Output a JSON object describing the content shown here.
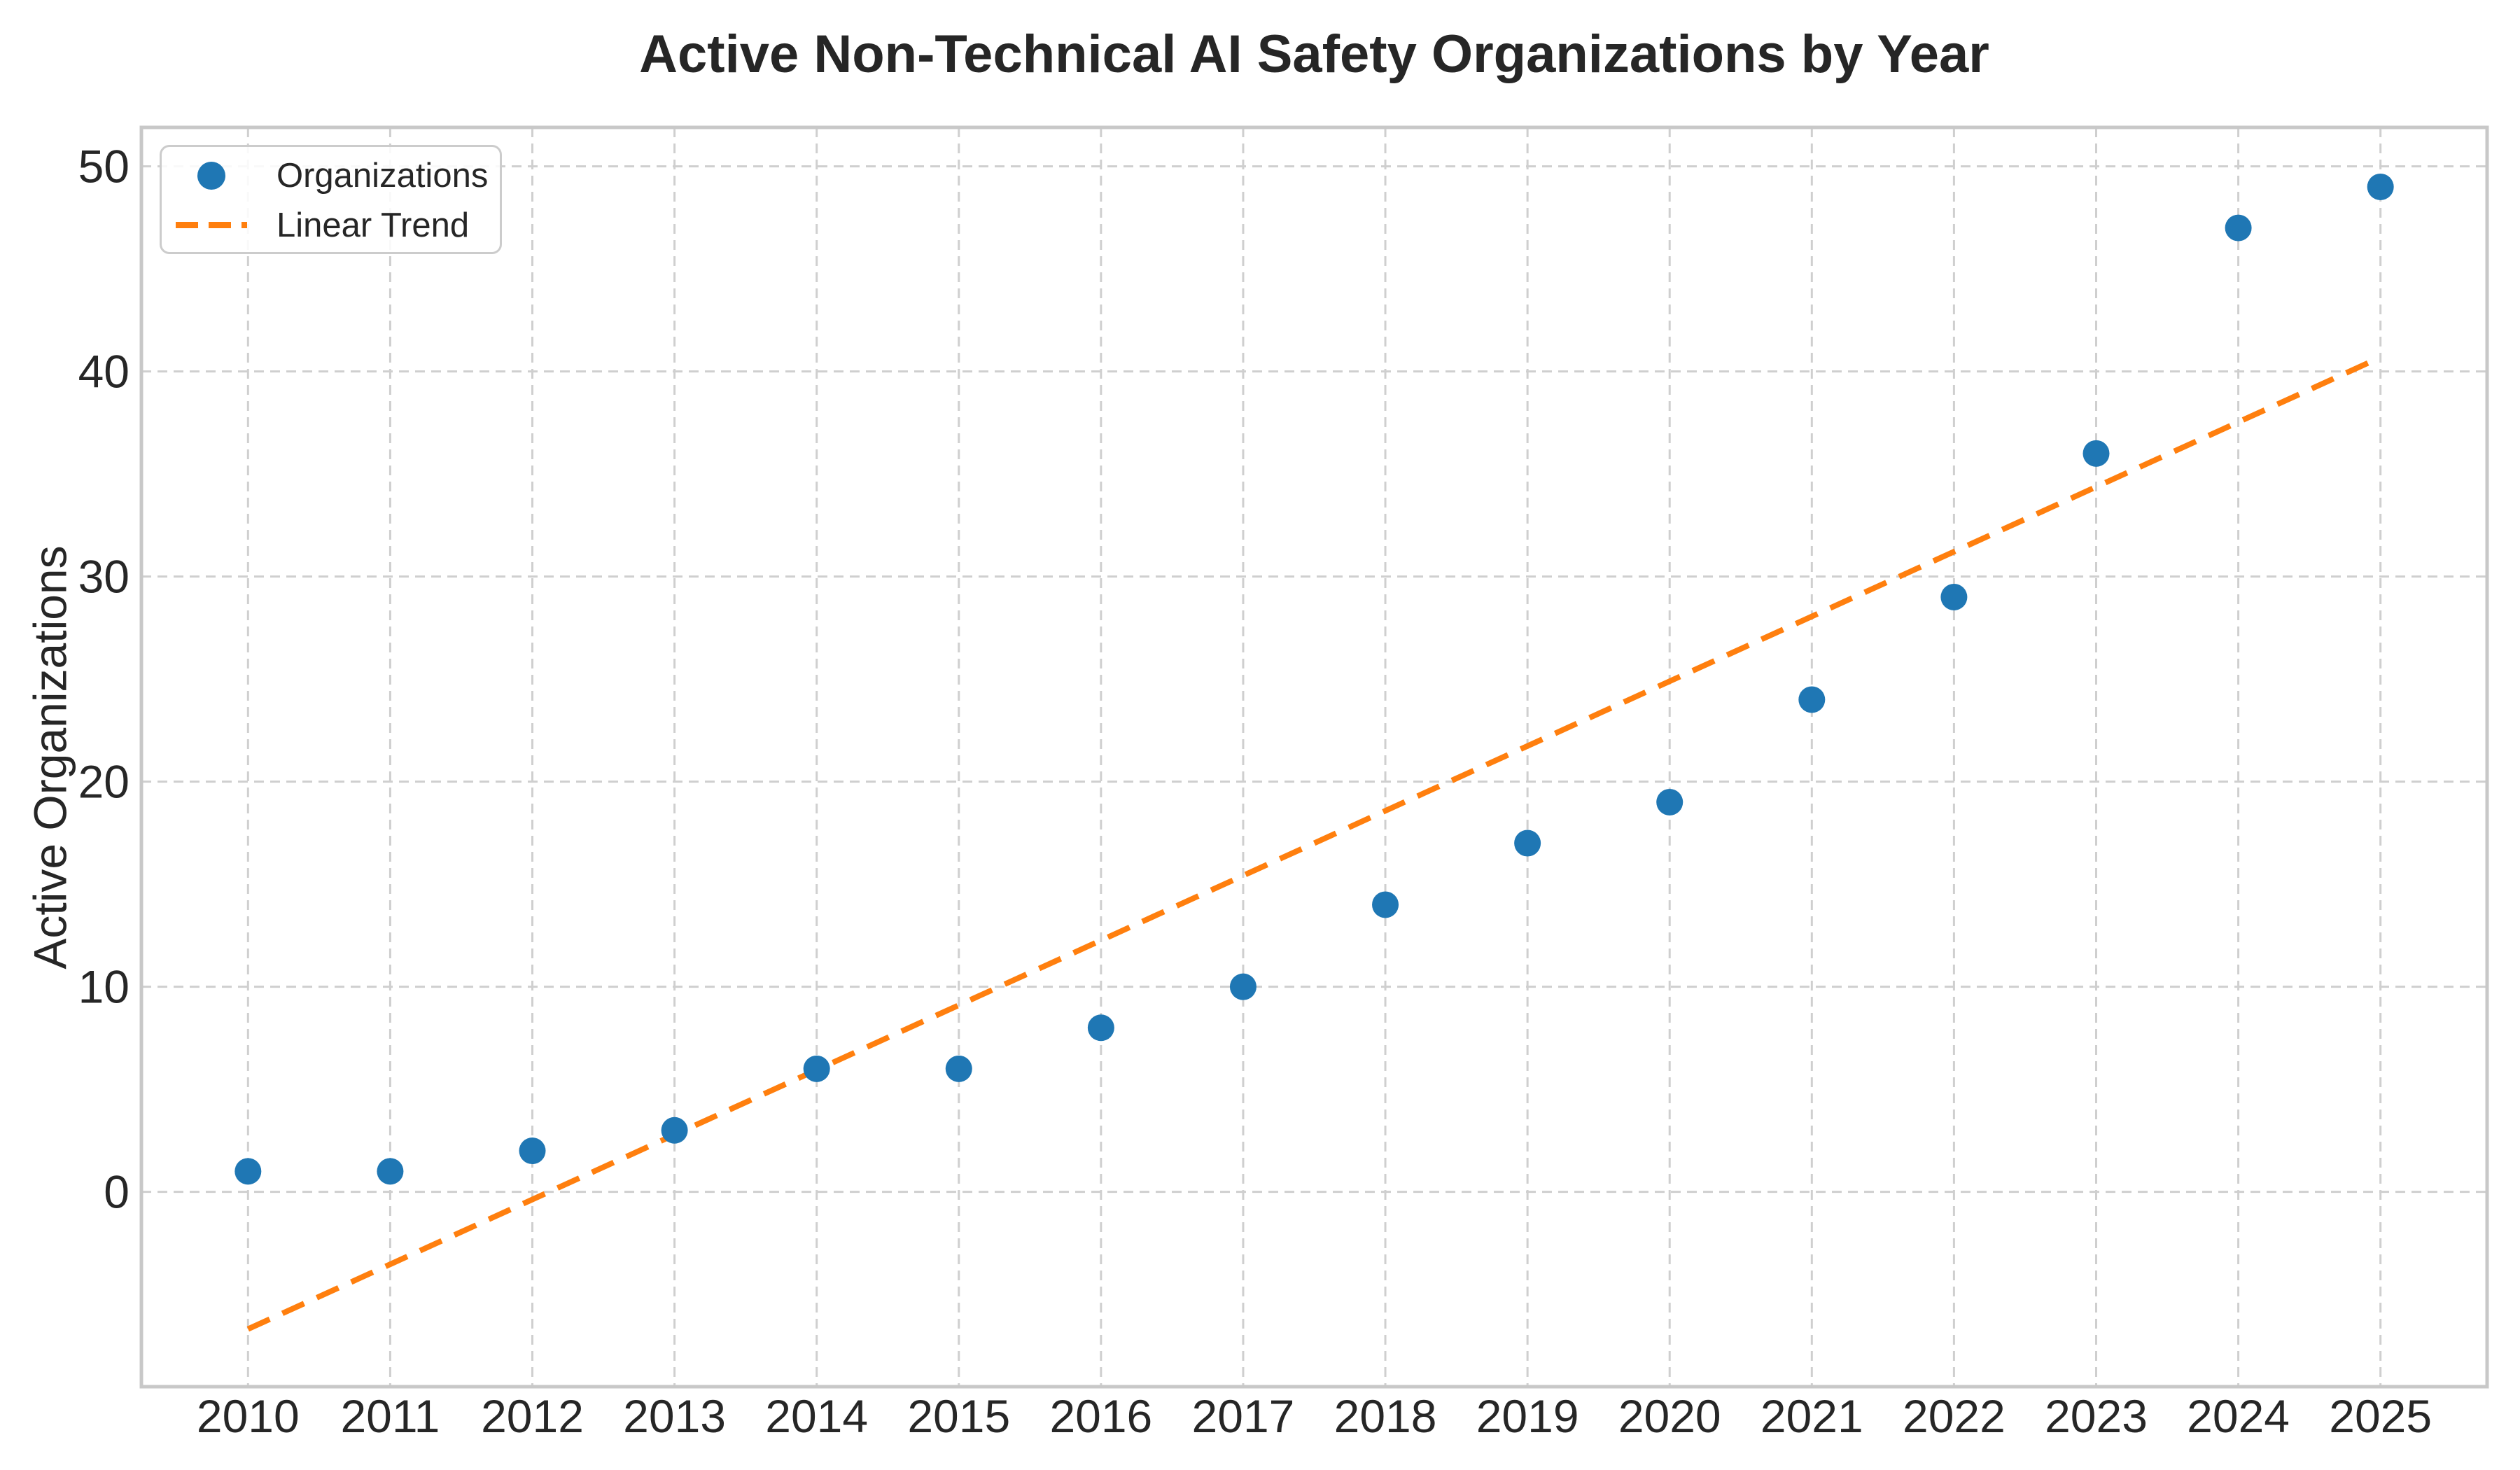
{
  "chart_data": {
    "type": "scatter",
    "title": "Active Non-Technical AI Safety Organizations by Year",
    "xlabel": "",
    "ylabel": "Active Organizations",
    "categories": [
      2010,
      2011,
      2012,
      2013,
      2014,
      2015,
      2016,
      2017,
      2018,
      2019,
      2020,
      2021,
      2022,
      2023,
      2024,
      2025
    ],
    "series": [
      {
        "name": "Organizations",
        "type": "scatter",
        "color": "#1f77b4",
        "values": [
          1,
          1,
          2,
          3,
          6,
          6,
          8,
          10,
          14,
          17,
          19,
          24,
          29,
          36,
          47,
          49
        ]
      },
      {
        "name": "Linear Trend",
        "type": "line",
        "line_style": "dashed",
        "color": "#ff7f0e",
        "x": [
          2010,
          2025
        ],
        "values": [
          -6.69,
          40.69
        ]
      }
    ],
    "xlim": [
      2009.25,
      2025.75
    ],
    "ylim": [
      -9.5,
      51.9
    ],
    "x_ticks": [
      2010,
      2011,
      2012,
      2013,
      2014,
      2015,
      2016,
      2017,
      2018,
      2019,
      2020,
      2021,
      2022,
      2023,
      2024,
      2025
    ],
    "y_ticks": [
      0,
      10,
      20,
      30,
      40,
      50
    ],
    "grid": "dashed",
    "legend_position": "upper left"
  },
  "legend": {
    "items": [
      {
        "label": "Organizations",
        "marker": "circle",
        "color": "#1f77b4"
      },
      {
        "label": "Linear Trend",
        "marker": "dashed-line",
        "color": "#ff7f0e"
      }
    ]
  },
  "colors": {
    "scatter": "#1f77b4",
    "trend": "#ff7f0e",
    "grid": "#cfcfcf",
    "spine": "#c8c8c8",
    "text": "#262626",
    "background": "#ffffff"
  }
}
